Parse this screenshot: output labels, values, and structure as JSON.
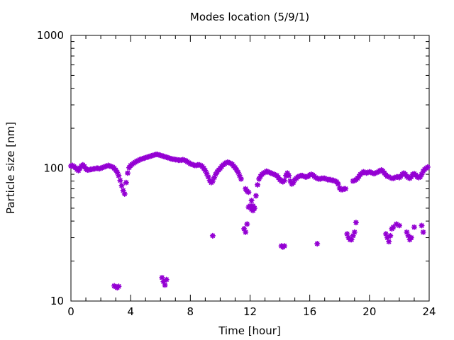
{
  "chart_data": {
    "type": "scatter",
    "title": "Modes location (5/9/1)",
    "xlabel": "Time [hour]",
    "ylabel": "Particle size [nm]",
    "xlim": [
      0,
      24
    ],
    "ylim": [
      10,
      1000
    ],
    "yscale": "log",
    "grid": false,
    "legend": "none",
    "marker_color": "#9400d3",
    "marker_symbol": "*",
    "x_ticks": [
      0,
      4,
      8,
      12,
      16,
      20,
      24
    ],
    "x_tick_labels": [
      "0",
      "4",
      "8",
      "12",
      "16",
      "20",
      "24"
    ],
    "y_ticks": [
      10,
      100,
      1000
    ],
    "y_tick_labels": [
      "10",
      "100",
      "1000"
    ],
    "series": [
      {
        "points": [
          [
            0.0,
            104
          ],
          [
            0.1,
            105
          ],
          [
            0.2,
            103
          ],
          [
            0.3,
            101
          ],
          [
            0.4,
            98
          ],
          [
            0.5,
            96
          ],
          [
            0.6,
            100
          ],
          [
            0.7,
            104
          ],
          [
            0.8,
            106
          ],
          [
            0.9,
            103
          ],
          [
            1.0,
            99
          ],
          [
            1.1,
            97
          ],
          [
            1.2,
            97
          ],
          [
            1.3,
            98
          ],
          [
            1.4,
            98
          ],
          [
            1.5,
            99
          ],
          [
            1.6,
            99
          ],
          [
            1.7,
            100
          ],
          [
            1.8,
            100
          ],
          [
            1.9,
            99
          ],
          [
            2.0,
            100
          ],
          [
            2.1,
            101
          ],
          [
            2.2,
            102
          ],
          [
            2.3,
            103
          ],
          [
            2.4,
            104
          ],
          [
            2.5,
            105
          ],
          [
            2.6,
            104
          ],
          [
            2.7,
            103
          ],
          [
            2.8,
            102
          ],
          [
            2.9,
            100
          ],
          [
            3.0,
            97
          ],
          [
            3.1,
            93
          ],
          [
            3.2,
            88
          ],
          [
            3.3,
            81
          ],
          [
            3.4,
            74
          ],
          [
            3.5,
            68
          ],
          [
            3.6,
            64
          ],
          [
            3.7,
            78
          ],
          [
            3.8,
            92
          ],
          [
            3.9,
            101
          ],
          [
            4.0,
            105
          ],
          [
            4.1,
            107
          ],
          [
            4.2,
            109
          ],
          [
            4.3,
            111
          ],
          [
            4.4,
            113
          ],
          [
            4.5,
            114
          ],
          [
            4.6,
            116
          ],
          [
            4.7,
            117
          ],
          [
            4.8,
            118
          ],
          [
            4.9,
            119
          ],
          [
            5.0,
            120
          ],
          [
            5.1,
            121
          ],
          [
            5.2,
            122
          ],
          [
            5.3,
            123
          ],
          [
            5.4,
            124
          ],
          [
            5.5,
            125
          ],
          [
            5.6,
            126
          ],
          [
            5.7,
            127
          ],
          [
            5.8,
            127
          ],
          [
            5.9,
            126
          ],
          [
            6.0,
            125
          ],
          [
            6.1,
            124
          ],
          [
            6.2,
            123
          ],
          [
            6.3,
            122
          ],
          [
            6.4,
            121
          ],
          [
            6.5,
            120
          ],
          [
            6.6,
            119
          ],
          [
            6.7,
            118
          ],
          [
            6.8,
            117
          ],
          [
            6.9,
            117
          ],
          [
            7.0,
            116
          ],
          [
            7.1,
            116
          ],
          [
            7.2,
            115
          ],
          [
            7.3,
            115
          ],
          [
            7.4,
            115
          ],
          [
            7.5,
            116
          ],
          [
            7.6,
            115
          ],
          [
            7.7,
            114
          ],
          [
            7.8,
            112
          ],
          [
            7.9,
            110
          ],
          [
            8.0,
            108
          ],
          [
            8.1,
            107
          ],
          [
            8.2,
            106
          ],
          [
            8.3,
            105
          ],
          [
            8.4,
            105
          ],
          [
            8.5,
            106
          ],
          [
            8.6,
            106
          ],
          [
            8.7,
            105
          ],
          [
            8.8,
            103
          ],
          [
            8.9,
            100
          ],
          [
            9.0,
            96
          ],
          [
            9.1,
            91
          ],
          [
            9.2,
            86
          ],
          [
            9.3,
            81
          ],
          [
            9.4,
            78
          ],
          [
            9.5,
            80
          ],
          [
            9.6,
            85
          ],
          [
            9.7,
            90
          ],
          [
            9.8,
            94
          ],
          [
            9.9,
            97
          ],
          [
            10.0,
            100
          ],
          [
            10.1,
            103
          ],
          [
            10.2,
            106
          ],
          [
            10.3,
            108
          ],
          [
            10.4,
            110
          ],
          [
            10.5,
            111
          ],
          [
            10.6,
            110
          ],
          [
            10.7,
            109
          ],
          [
            10.8,
            107
          ],
          [
            10.9,
            104
          ],
          [
            11.0,
            101
          ],
          [
            11.1,
            97
          ],
          [
            11.2,
            93
          ],
          [
            11.3,
            88
          ],
          [
            11.4,
            83
          ],
          [
            11.7,
            70
          ],
          [
            11.8,
            67
          ],
          [
            11.9,
            66
          ],
          [
            12.1,
            57
          ],
          [
            12.2,
            52
          ],
          [
            12.3,
            50
          ],
          [
            12.4,
            62
          ],
          [
            12.5,
            75
          ],
          [
            12.6,
            83
          ],
          [
            12.7,
            87
          ],
          [
            12.8,
            90
          ],
          [
            12.9,
            92
          ],
          [
            13.0,
            93
          ],
          [
            13.1,
            95
          ],
          [
            13.2,
            94
          ],
          [
            13.3,
            93
          ],
          [
            13.4,
            92
          ],
          [
            13.5,
            91
          ],
          [
            13.6,
            90
          ],
          [
            13.7,
            89
          ],
          [
            13.8,
            88
          ],
          [
            13.9,
            85
          ],
          [
            14.0,
            82
          ],
          [
            14.1,
            80
          ],
          [
            14.2,
            79
          ],
          [
            14.3,
            81
          ],
          [
            14.4,
            88
          ],
          [
            14.5,
            92
          ],
          [
            14.6,
            88
          ],
          [
            14.7,
            80
          ],
          [
            14.8,
            76
          ],
          [
            14.9,
            78
          ],
          [
            15.0,
            82
          ],
          [
            15.1,
            84
          ],
          [
            15.2,
            86
          ],
          [
            15.3,
            87
          ],
          [
            15.4,
            88
          ],
          [
            15.5,
            88
          ],
          [
            15.6,
            87
          ],
          [
            15.7,
            86
          ],
          [
            15.8,
            86
          ],
          [
            15.9,
            87
          ],
          [
            16.0,
            89
          ],
          [
            16.1,
            90
          ],
          [
            16.2,
            89
          ],
          [
            16.3,
            87
          ],
          [
            16.4,
            85
          ],
          [
            16.5,
            84
          ],
          [
            16.6,
            83
          ],
          [
            16.7,
            83
          ],
          [
            16.8,
            84
          ],
          [
            16.9,
            84
          ],
          [
            17.0,
            84
          ],
          [
            17.1,
            83
          ],
          [
            17.2,
            82
          ],
          [
            17.3,
            82
          ],
          [
            17.4,
            82
          ],
          [
            17.5,
            81
          ],
          [
            17.6,
            81
          ],
          [
            17.7,
            80
          ],
          [
            17.8,
            79
          ],
          [
            17.9,
            76
          ],
          [
            18.0,
            71
          ],
          [
            18.1,
            69
          ],
          [
            18.2,
            69
          ],
          [
            18.3,
            70
          ],
          [
            18.4,
            70
          ],
          [
            18.9,
            80
          ],
          [
            19.0,
            81
          ],
          [
            19.1,
            82
          ],
          [
            19.2,
            84
          ],
          [
            19.3,
            87
          ],
          [
            19.4,
            90
          ],
          [
            19.5,
            92
          ],
          [
            19.6,
            94
          ],
          [
            19.7,
            93
          ],
          [
            19.8,
            92
          ],
          [
            19.9,
            93
          ],
          [
            20.0,
            94
          ],
          [
            20.1,
            93
          ],
          [
            20.2,
            92
          ],
          [
            20.3,
            91
          ],
          [
            20.4,
            92
          ],
          [
            20.5,
            93
          ],
          [
            20.6,
            94
          ],
          [
            20.7,
            96
          ],
          [
            20.8,
            97
          ],
          [
            20.9,
            95
          ],
          [
            21.0,
            92
          ],
          [
            21.1,
            89
          ],
          [
            21.2,
            87
          ],
          [
            21.3,
            86
          ],
          [
            21.5,
            84
          ],
          [
            21.6,
            84
          ],
          [
            21.7,
            85
          ],
          [
            21.8,
            86
          ],
          [
            21.9,
            86
          ],
          [
            22.0,
            85
          ],
          [
            22.1,
            87
          ],
          [
            22.2,
            90
          ],
          [
            22.3,
            92
          ],
          [
            22.4,
            90
          ],
          [
            22.5,
            87
          ],
          [
            22.6,
            85
          ],
          [
            22.7,
            84
          ],
          [
            22.8,
            86
          ],
          [
            22.9,
            90
          ],
          [
            23.0,
            91
          ],
          [
            23.1,
            89
          ],
          [
            23.2,
            86
          ],
          [
            23.3,
            85
          ],
          [
            23.4,
            86
          ],
          [
            23.5,
            90
          ],
          [
            23.6,
            95
          ],
          [
            23.7,
            98
          ],
          [
            23.8,
            100
          ],
          [
            23.9,
            102
          ],
          [
            2.9,
            13
          ],
          [
            3.0,
            12.8
          ],
          [
            3.1,
            12.6
          ],
          [
            3.2,
            12.9
          ],
          [
            6.1,
            15
          ],
          [
            6.2,
            14
          ],
          [
            6.3,
            13.2
          ],
          [
            6.4,
            14.5
          ],
          [
            9.5,
            31
          ],
          [
            11.6,
            35
          ],
          [
            11.7,
            33
          ],
          [
            11.8,
            38
          ],
          [
            11.9,
            51
          ],
          [
            12.0,
            52
          ],
          [
            12.1,
            49
          ],
          [
            12.2,
            48
          ],
          [
            14.1,
            26
          ],
          [
            14.2,
            25.5
          ],
          [
            14.3,
            26
          ],
          [
            16.5,
            27
          ],
          [
            18.5,
            32
          ],
          [
            18.6,
            30
          ],
          [
            18.7,
            29
          ],
          [
            18.8,
            29
          ],
          [
            18.9,
            31
          ],
          [
            19.0,
            33
          ],
          [
            19.1,
            39
          ],
          [
            21.1,
            32
          ],
          [
            21.2,
            30
          ],
          [
            21.3,
            28
          ],
          [
            21.4,
            31
          ],
          [
            21.5,
            35
          ],
          [
            21.6,
            36
          ],
          [
            21.8,
            38
          ],
          [
            22.0,
            37
          ],
          [
            22.5,
            33
          ],
          [
            22.6,
            31
          ],
          [
            22.7,
            29
          ],
          [
            22.8,
            30
          ],
          [
            23.0,
            36
          ],
          [
            23.5,
            37
          ],
          [
            23.6,
            33
          ]
        ]
      }
    ]
  }
}
